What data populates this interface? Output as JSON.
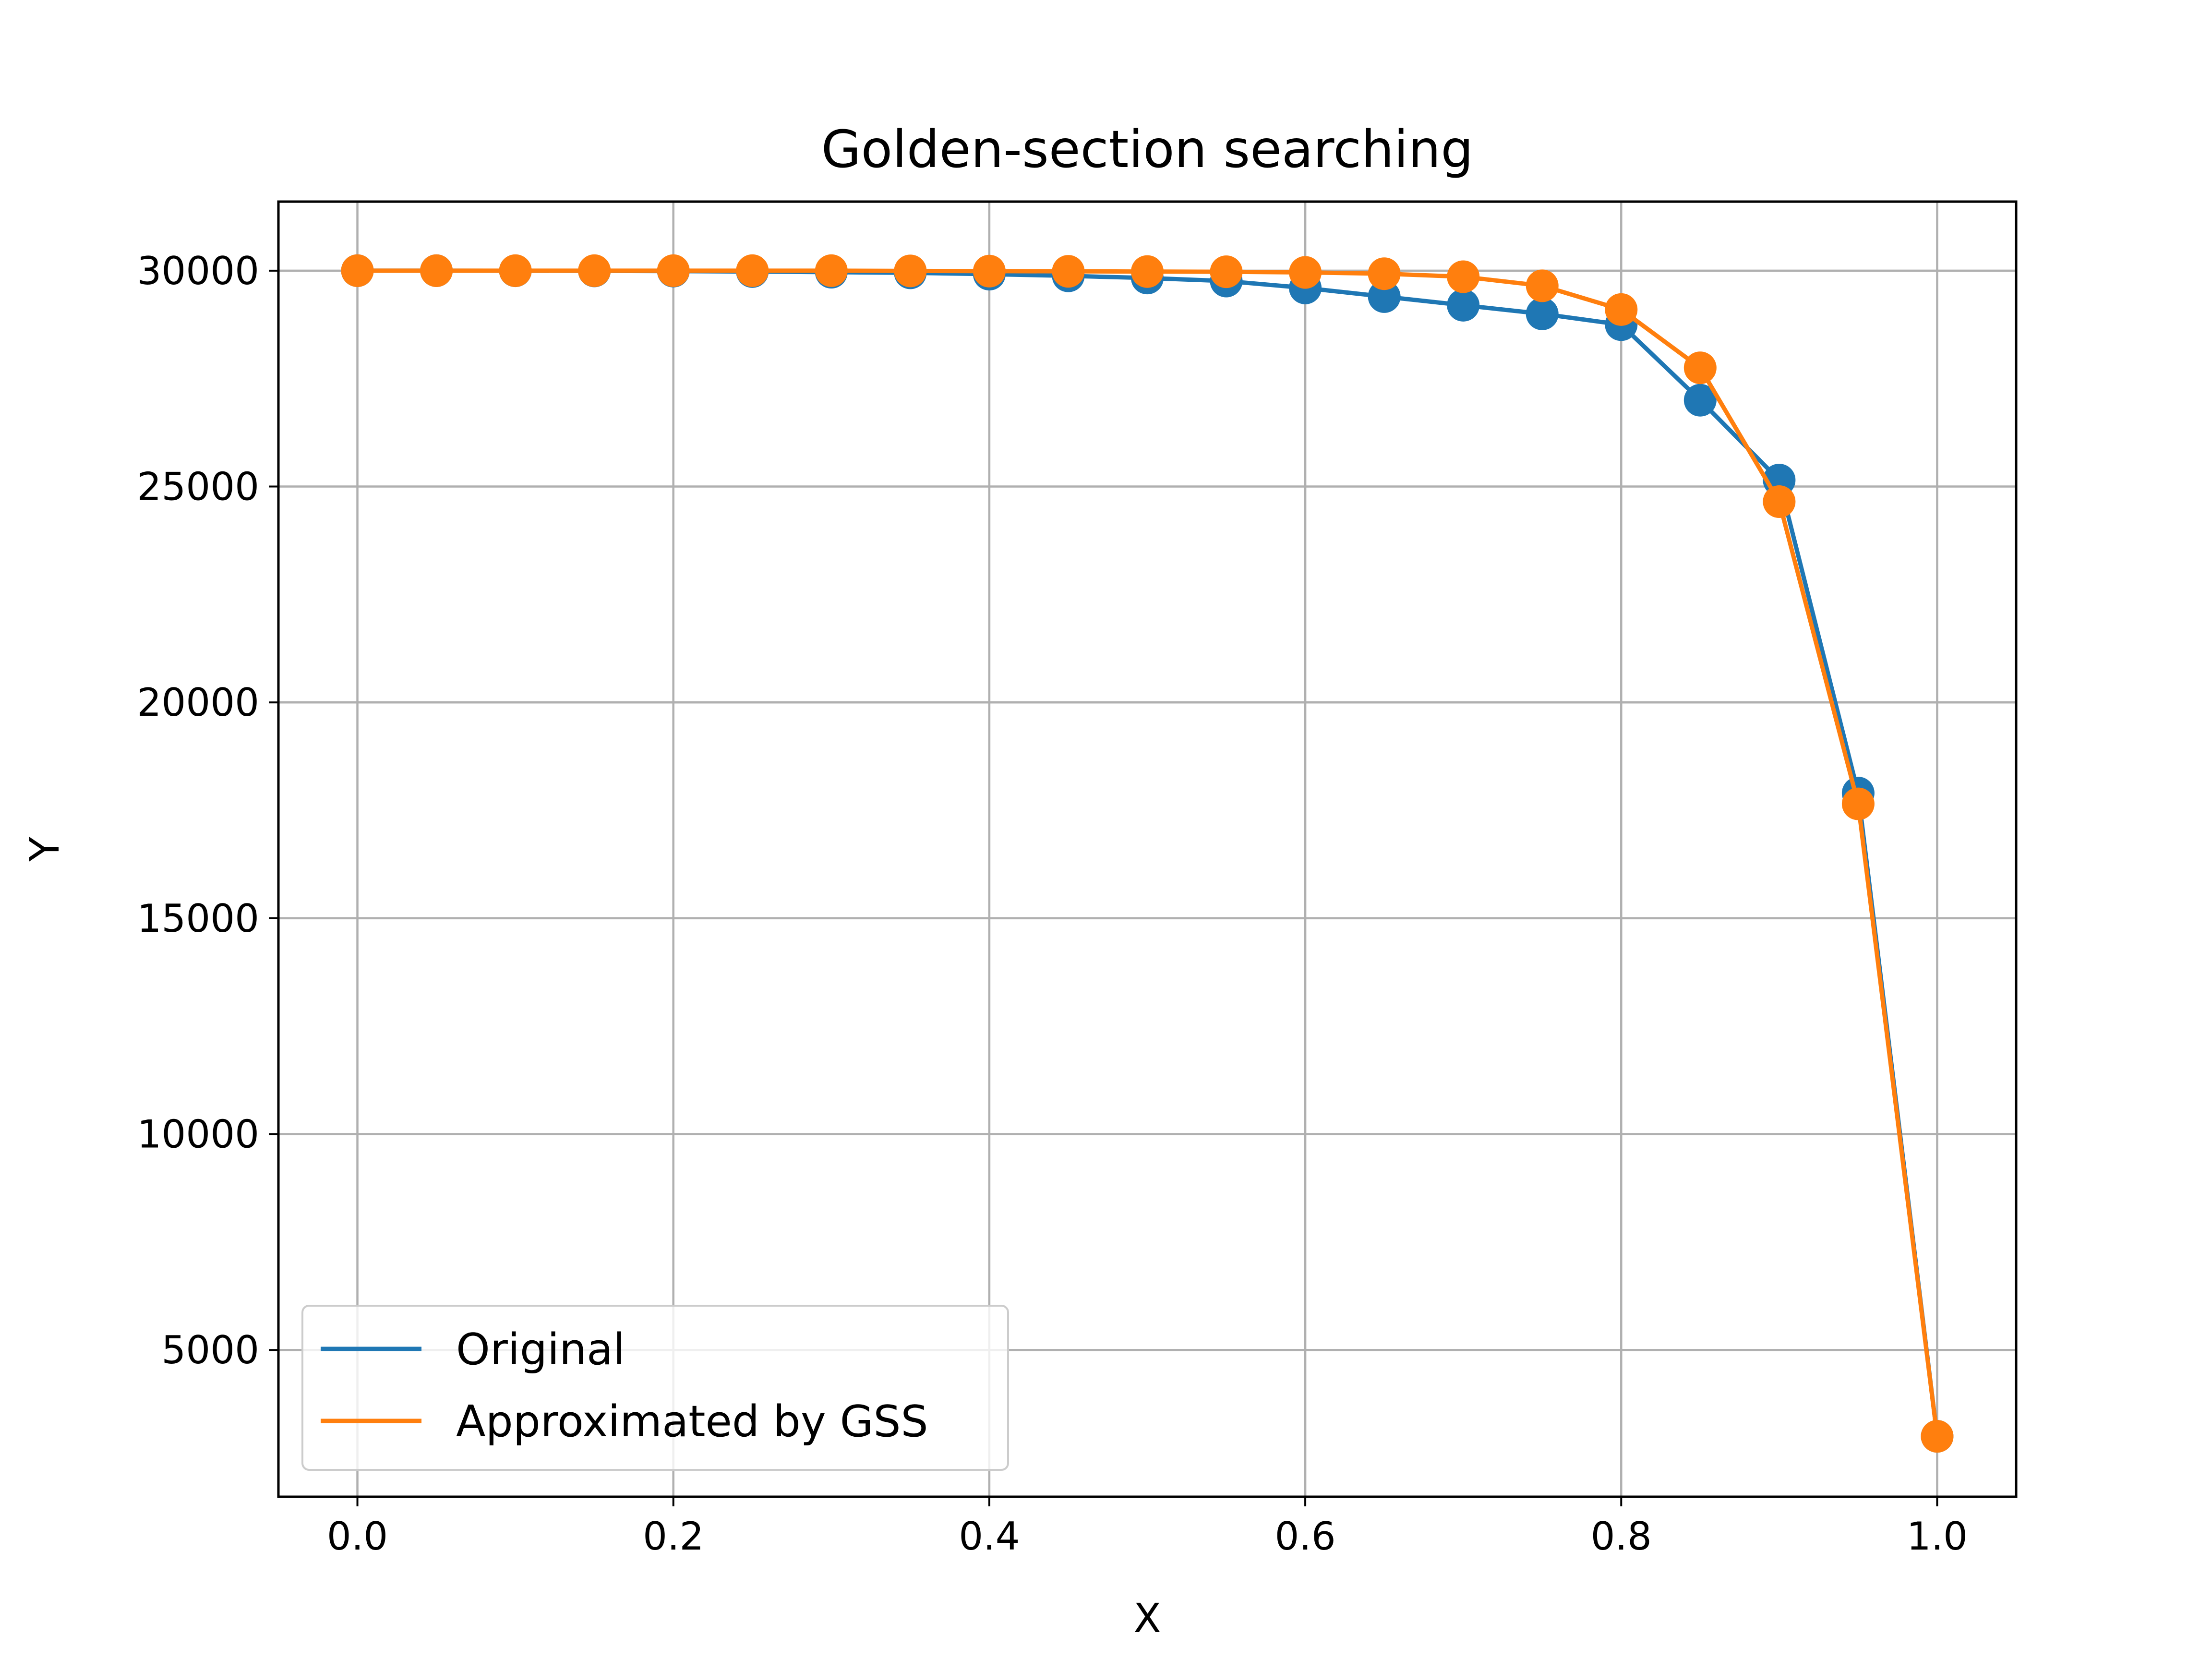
{
  "chart_data": {
    "type": "line",
    "title": "Golden-section searching",
    "xlabel": "X",
    "ylabel": "Y",
    "xlim": [
      -0.05,
      1.05
    ],
    "ylim": [
      1600,
      31600
    ],
    "xticks": [
      0.0,
      0.2,
      0.4,
      0.6,
      0.8,
      1.0
    ],
    "xtick_labels": [
      "0.0",
      "0.2",
      "0.4",
      "0.6",
      "0.8",
      "1.0"
    ],
    "yticks": [
      5000,
      10000,
      15000,
      20000,
      25000,
      30000
    ],
    "ytick_labels": [
      "5000",
      "10000",
      "15000",
      "20000",
      "25000",
      "30000"
    ],
    "grid": true,
    "legend_position": "lower-left",
    "x": [
      0.0,
      0.05,
      0.1,
      0.15,
      0.2,
      0.25,
      0.3,
      0.35,
      0.4,
      0.45,
      0.5,
      0.55,
      0.6,
      0.65,
      0.7,
      0.75,
      0.8,
      0.85,
      0.9,
      0.95,
      1.0
    ],
    "series": [
      {
        "name": "Original",
        "color": "#1f77b4",
        "values": [
          30000,
          30000,
          29998,
          29995,
          29990,
          29980,
          29965,
          29950,
          29920,
          29880,
          29830,
          29760,
          29600,
          29400,
          29200,
          29000,
          28750,
          27000,
          25150,
          17900,
          3000
        ]
      },
      {
        "name": "Approximated by GSS",
        "color": "#ff7f0e",
        "values": [
          30000,
          30000,
          30000,
          30000,
          30000,
          30000,
          30000,
          29995,
          29990,
          29985,
          29980,
          29975,
          29960,
          29930,
          29860,
          29650,
          29100,
          27750,
          24650,
          17650,
          3000
        ]
      }
    ]
  }
}
